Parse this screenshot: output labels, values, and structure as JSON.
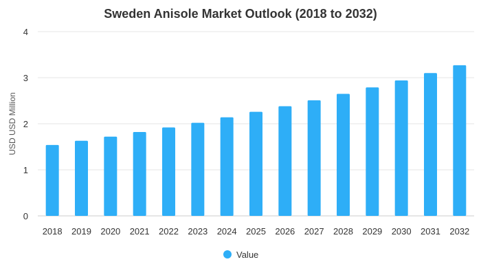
{
  "chart_data": {
    "type": "bar",
    "title": "Sweden Anisole Market Outlook (2018 to 2032)",
    "xlabel": "",
    "ylabel": "USD USD Million",
    "ylim": [
      0,
      4
    ],
    "yticks": [
      0,
      1,
      2,
      3,
      4
    ],
    "grid": true,
    "legend_position": "bottom-center",
    "categories": [
      "2018",
      "2019",
      "2020",
      "2021",
      "2022",
      "2023",
      "2024",
      "2025",
      "2026",
      "2027",
      "2028",
      "2029",
      "2030",
      "2031",
      "2032"
    ],
    "series": [
      {
        "name": "Value",
        "color": "#2eaef7",
        "values": [
          1.54,
          1.63,
          1.72,
          1.82,
          1.92,
          2.02,
          2.14,
          2.26,
          2.38,
          2.51,
          2.65,
          2.79,
          2.94,
          3.1,
          3.27
        ]
      }
    ]
  }
}
